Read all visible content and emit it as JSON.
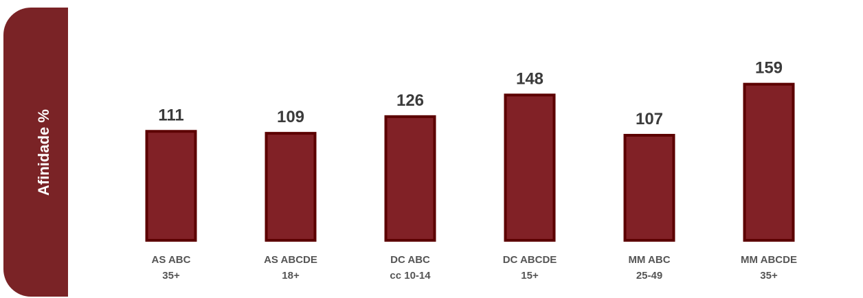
{
  "colors": {
    "panel": "#7a2326",
    "bar_fill": "#812126",
    "bar_stroke": "#5c0000"
  },
  "chart_data": {
    "type": "bar",
    "ylabel": "Afinidade %",
    "categories": [
      [
        "AS ABC",
        "35+"
      ],
      [
        "AS ABCDE",
        "18+"
      ],
      [
        "DC ABC",
        "cc 10-14"
      ],
      [
        "DC ABCDE",
        "15+"
      ],
      [
        "MM ABC",
        "25-49"
      ],
      [
        "MM ABCDE",
        "35+"
      ]
    ],
    "values": [
      111,
      109,
      126,
      148,
      107,
      159
    ],
    "ylim": [
      0,
      170
    ],
    "grid": false,
    "legend": "none"
  }
}
